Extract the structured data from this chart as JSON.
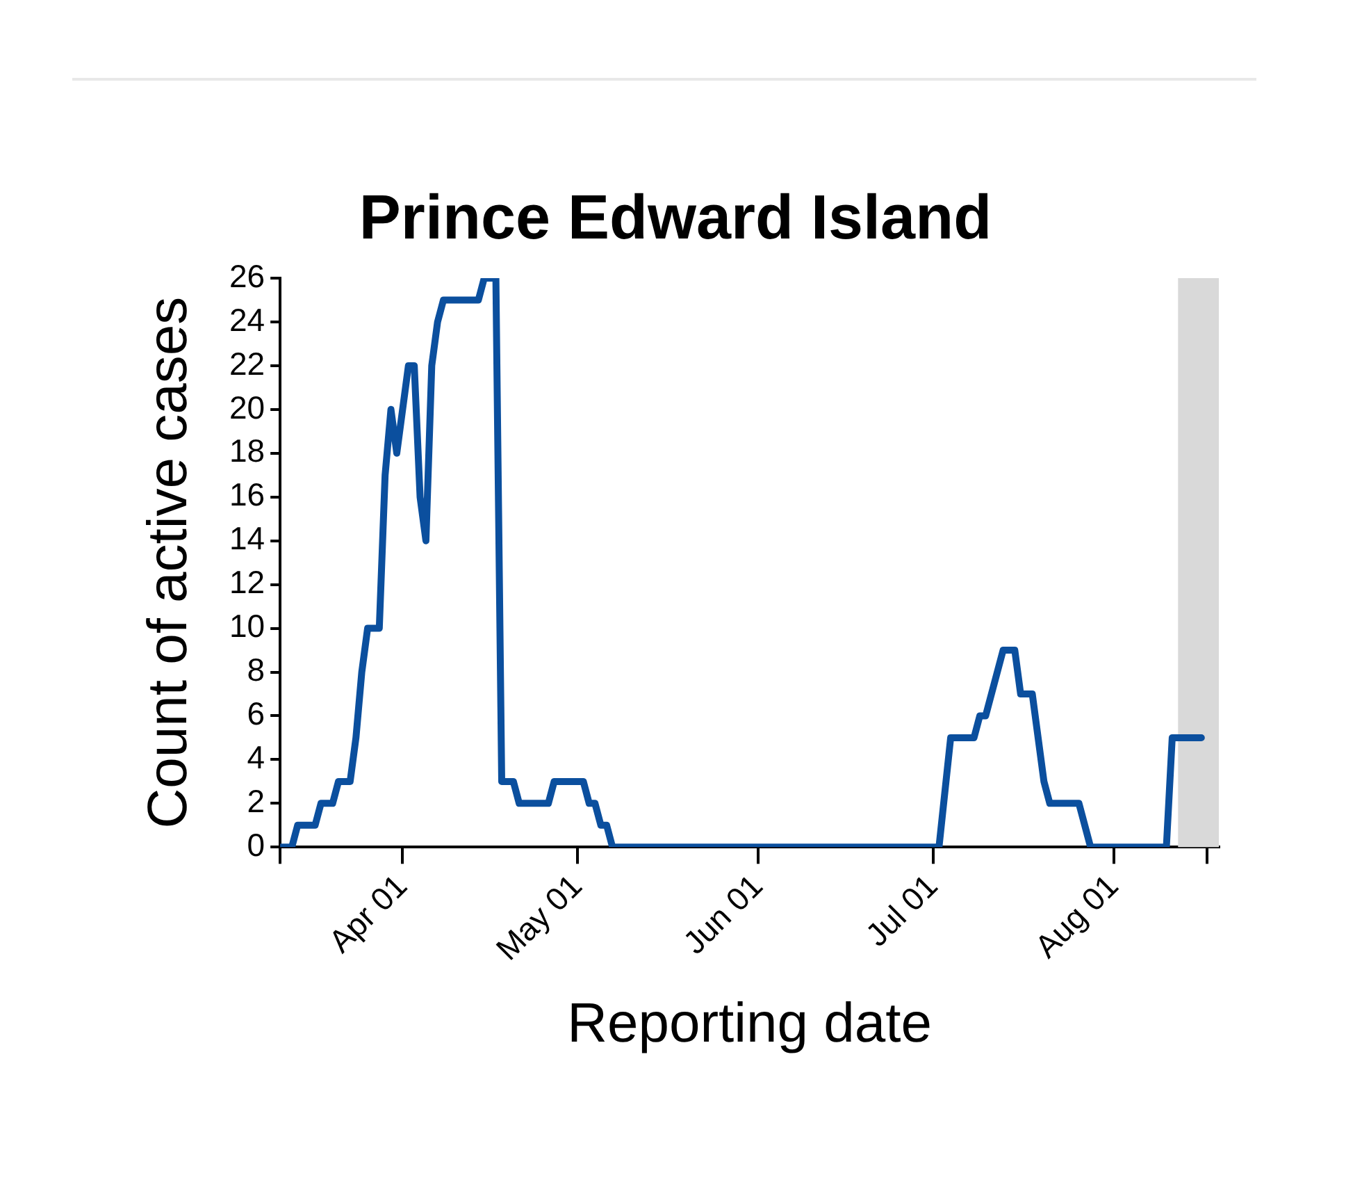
{
  "chart_data": {
    "type": "line",
    "title": "Prince Edward Island",
    "xlabel": "Reporting date",
    "ylabel": "Count of active cases",
    "x": [
      "--03-11",
      "--03-13",
      "--03-14",
      "--03-17",
      "--03-18",
      "--03-20",
      "--03-21",
      "--03-23",
      "--03-24",
      "--03-25",
      "--03-26",
      "--03-28",
      "--03-29",
      "--03-30",
      "--03-31",
      "--04-01",
      "--04-02",
      "--04-03",
      "--04-04",
      "--04-05",
      "--04-06",
      "--04-07",
      "--04-08",
      "--04-14",
      "--04-15",
      "--04-17",
      "--04-18",
      "--04-20",
      "--04-21",
      "--04-26",
      "--04-27",
      "--05-02",
      "--05-03",
      "--05-04",
      "--05-05",
      "--05-06",
      "--05-07",
      "--07-02",
      "--07-04",
      "--07-08",
      "--07-09",
      "--07-10",
      "--07-13",
      "--07-15",
      "--07-16",
      "--07-18",
      "--07-20",
      "--07-21",
      "--07-26",
      "--07-28",
      "--08-10",
      "--08-11",
      "--08-16"
    ],
    "series": [
      {
        "color": "#0b4f9e",
        "values": [
          0,
          0,
          1,
          1,
          2,
          2,
          3,
          3,
          5,
          8,
          10,
          10,
          17,
          20,
          18,
          20,
          22,
          22,
          16,
          14,
          22,
          24,
          25,
          25,
          26,
          26,
          3,
          3,
          2,
          2,
          3,
          3,
          2,
          2,
          1,
          1,
          0,
          0,
          5,
          5,
          6,
          6,
          9,
          9,
          7,
          7,
          3,
          2,
          2,
          0,
          0,
          5,
          5
        ]
      }
    ],
    "xlim": [
      "--03-11",
      "--08-19"
    ],
    "xticks": [
      {
        "value": "--03-11",
        "label": null
      },
      {
        "value": "--04-01",
        "label": "Apr 01"
      },
      {
        "value": "--05-01",
        "label": "May 01"
      },
      {
        "value": "--06-01",
        "label": "Jun 01"
      },
      {
        "value": "--07-01",
        "label": "Jul 01"
      },
      {
        "value": "--08-01",
        "label": "Aug 01"
      },
      {
        "value": "--08-17",
        "label": null
      }
    ],
    "ylim": [
      0,
      26
    ],
    "yticks": [
      0,
      2,
      4,
      6,
      8,
      10,
      12,
      14,
      16,
      18,
      20,
      22,
      24,
      26
    ],
    "bands": [
      {
        "axis": "x",
        "from": "--08-12",
        "to": "--08-19",
        "color": "#d9d9d9"
      }
    ],
    "grid": false,
    "legend": false,
    "marker": "none",
    "line_style": "solid"
  }
}
